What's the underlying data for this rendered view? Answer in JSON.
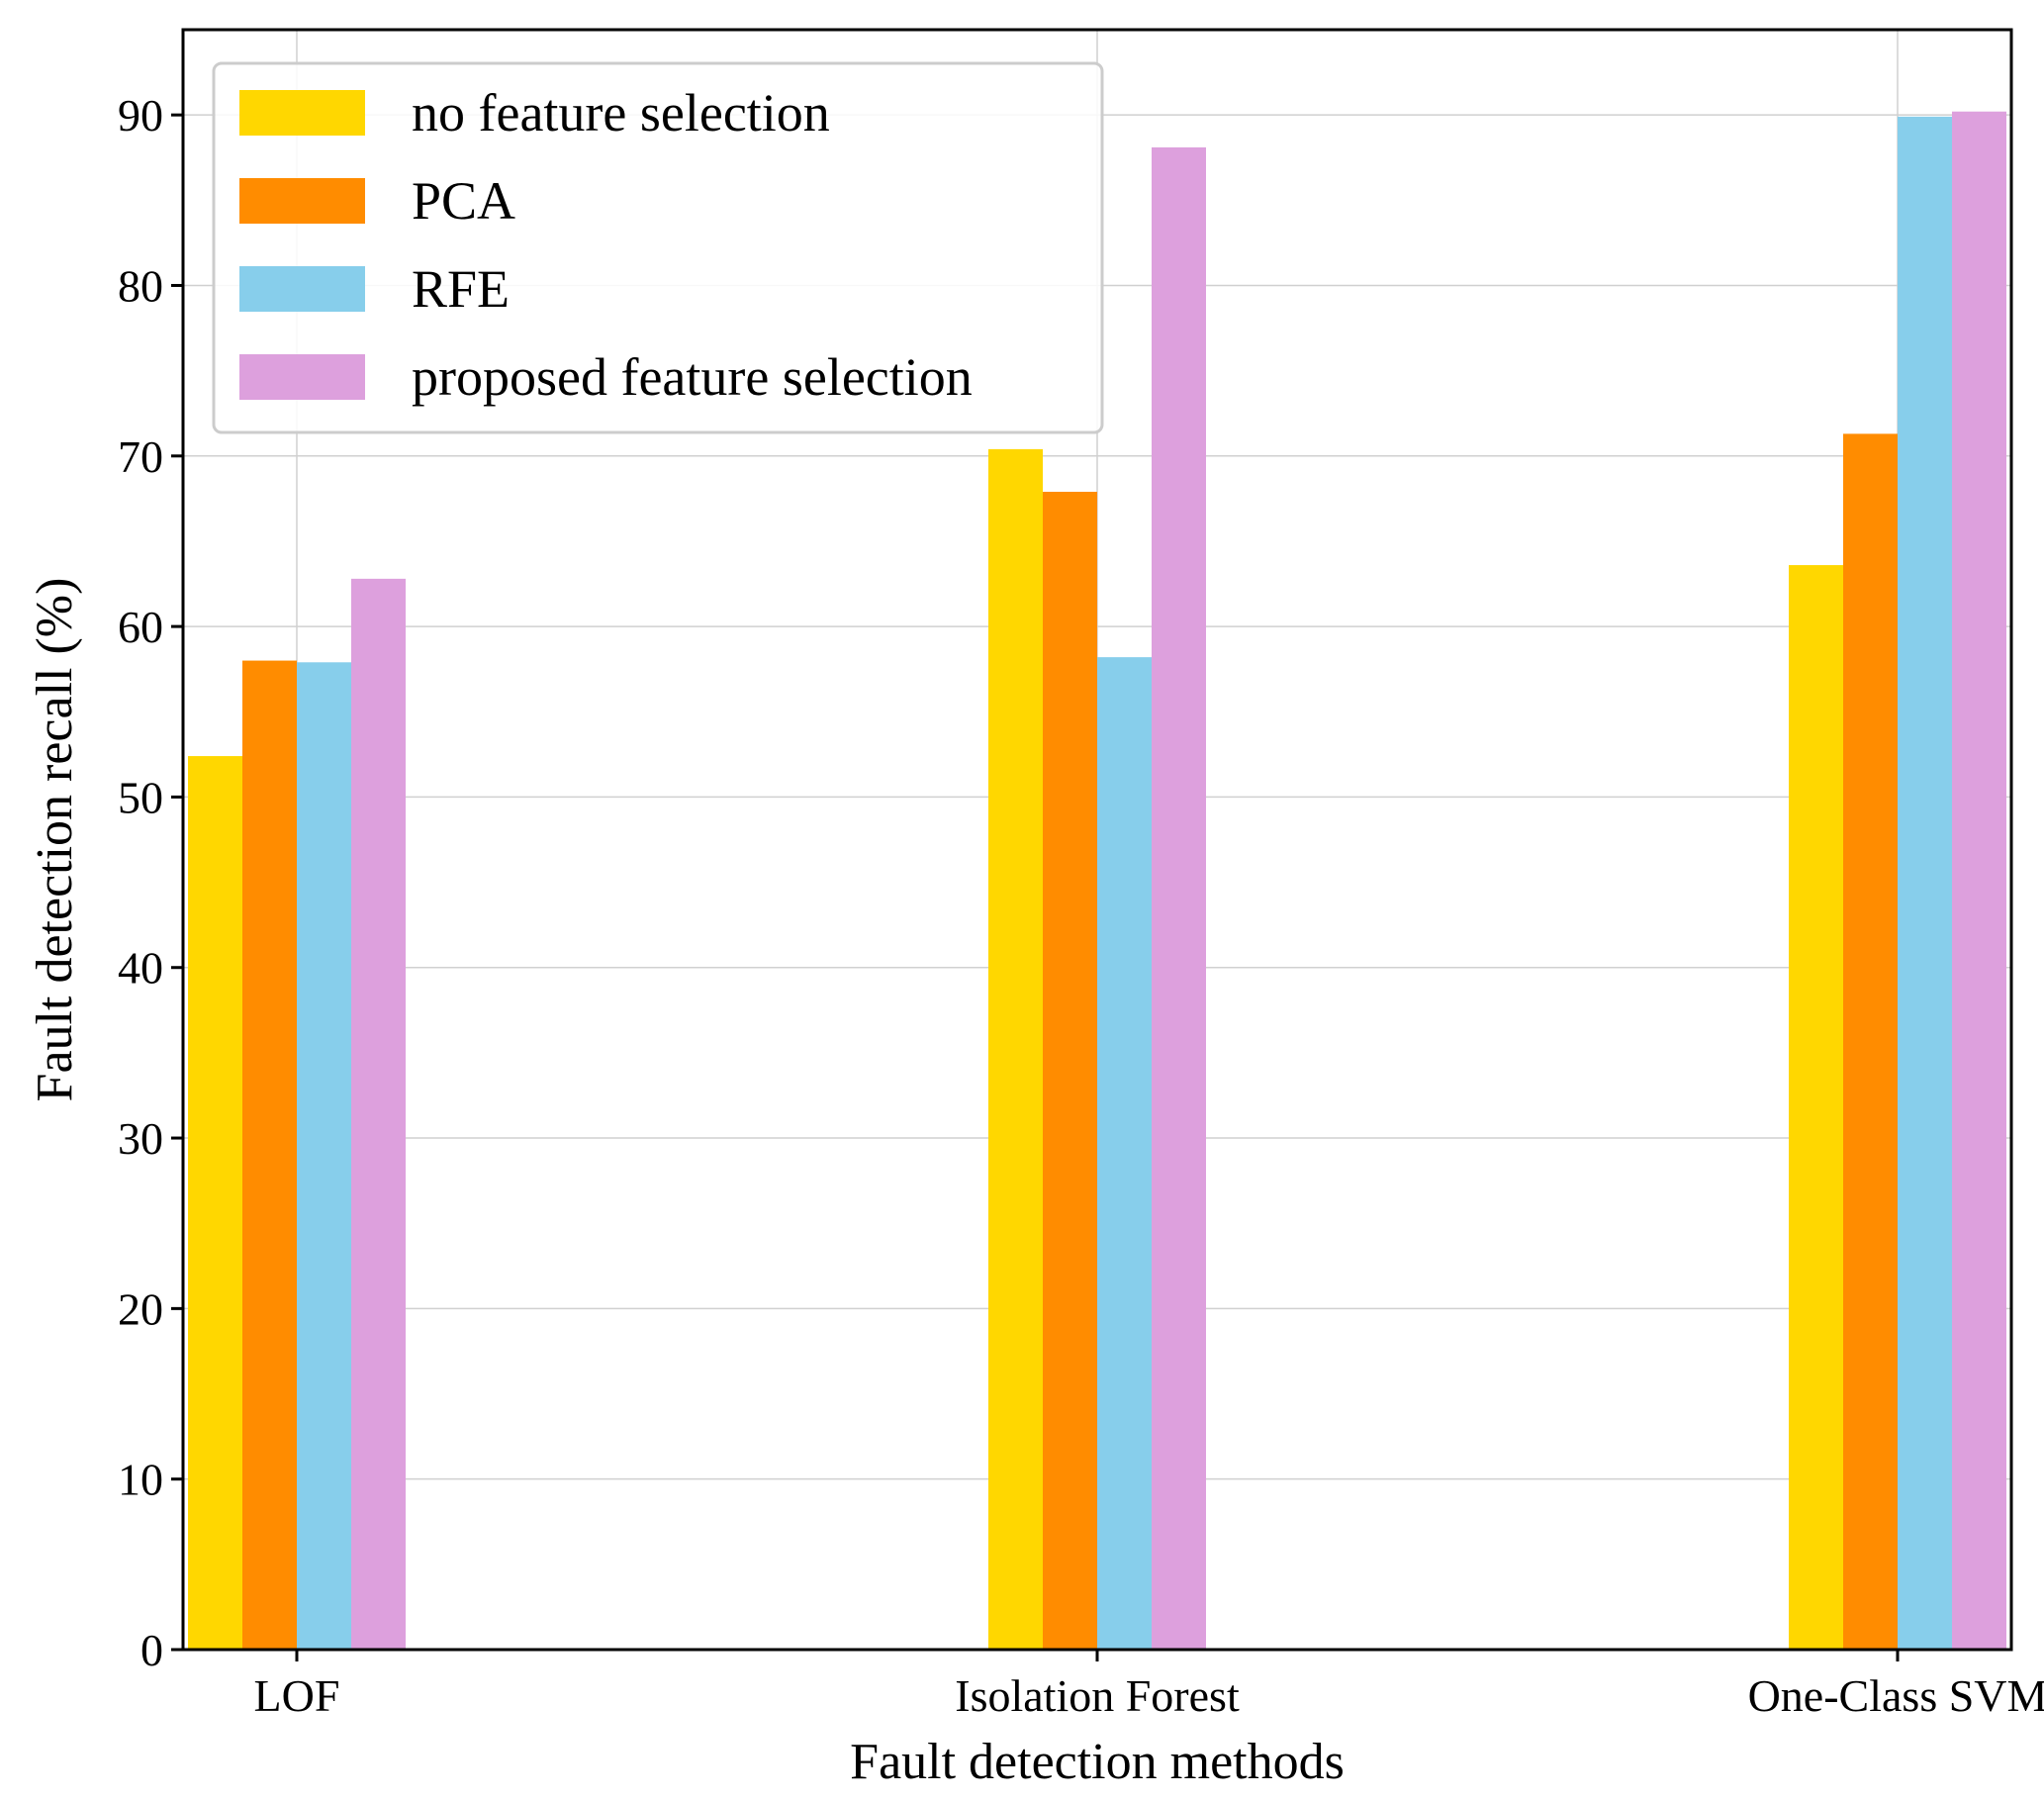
{
  "chart_data": {
    "type": "bar",
    "title": "",
    "xlabel": "Fault detection methods",
    "ylabel": "Fault detection recall (%)",
    "ylim": [
      0,
      95
    ],
    "yticks": [
      0,
      10,
      20,
      30,
      40,
      50,
      60,
      70,
      80,
      90
    ],
    "grid": true,
    "legend_position": "top-left",
    "categories": [
      "LOF",
      "Isolation Forest",
      "One-Class SVM"
    ],
    "series": [
      {
        "name": "no feature selection",
        "color": "#FFD700",
        "values": [
          52.4,
          70.4,
          63.6
        ]
      },
      {
        "name": "PCA",
        "color": "#FF8C00",
        "values": [
          58.0,
          67.9,
          71.3
        ]
      },
      {
        "name": "RFE",
        "color": "#87CEEB",
        "values": [
          57.9,
          58.2,
          89.9
        ]
      },
      {
        "name": "proposed feature selection",
        "color": "#DDA0DD",
        "values": [
          62.8,
          88.1,
          90.2
        ]
      }
    ]
  }
}
